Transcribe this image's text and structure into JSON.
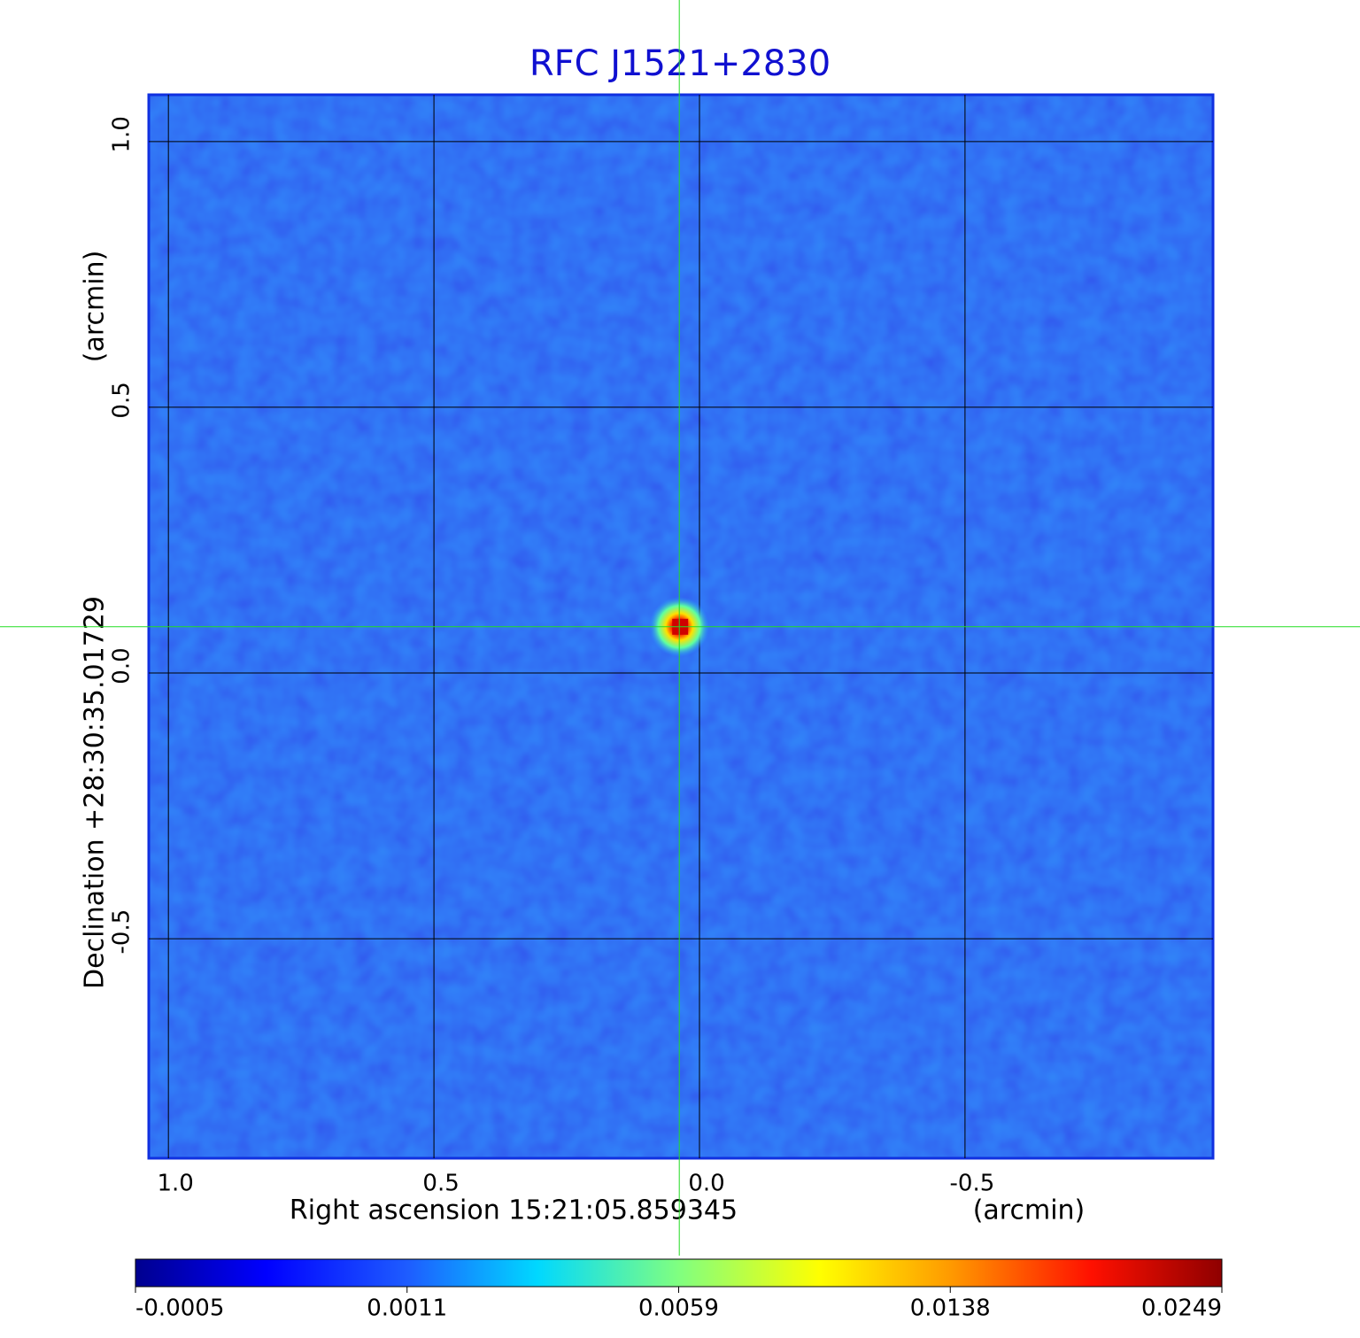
{
  "chart_data": {
    "type": "image",
    "title": "RFC J1521+2830",
    "x_label": "Right ascension  15:21:05.859345",
    "x_unit": "(arcmin)",
    "y_label": "Declination  +28:30:35.01729",
    "y_unit": "(arcmin)",
    "xlim": [
      1.037,
      -0.967
    ],
    "ylim": [
      -0.913,
      1.088
    ],
    "xticks": [
      {
        "value": 1,
        "label": "1.0"
      },
      0.5,
      {
        "value": 0,
        "label": "0.0"
      },
      -0.5
    ],
    "yticks": [
      {
        "value": 1,
        "label": "1.0"
      },
      0.5,
      {
        "value": 0,
        "label": "0.0"
      },
      -0.5
    ],
    "grid": true,
    "crosshair": {
      "x": 0.038,
      "y": 0.087,
      "color": "#22dd22"
    },
    "colorbar": {
      "colormap": "jet",
      "ticks": [
        -0.0005,
        0.0011,
        0.0059,
        0.0138,
        0.0249
      ]
    }
  }
}
